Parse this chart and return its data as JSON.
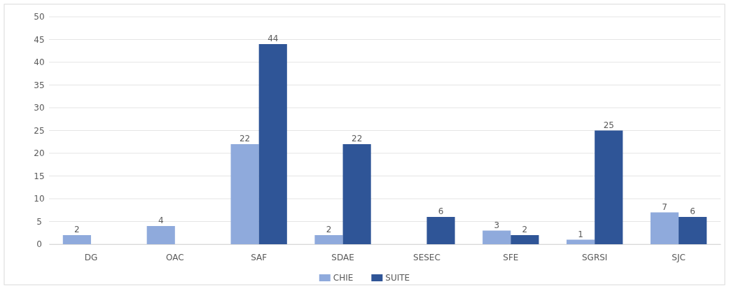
{
  "chart_data": {
    "type": "bar",
    "categories": [
      "DG",
      "OAC",
      "SAF",
      "SDAE",
      "SESEC",
      "SFE",
      "SGRSI",
      "SJC"
    ],
    "series": [
      {
        "name": "CHIE",
        "color": "#8faadc",
        "values": [
          2,
          4,
          22,
          2,
          null,
          3,
          1,
          7
        ]
      },
      {
        "name": "SUITE",
        "color": "#2f5597",
        "values": [
          null,
          null,
          44,
          22,
          6,
          2,
          25,
          6
        ]
      }
    ],
    "ylim": [
      0,
      50
    ],
    "yticks": [
      0,
      5,
      10,
      15,
      20,
      25,
      30,
      35,
      40,
      45,
      50
    ],
    "grid": "y",
    "legend": "bottom",
    "data_labels": true
  }
}
